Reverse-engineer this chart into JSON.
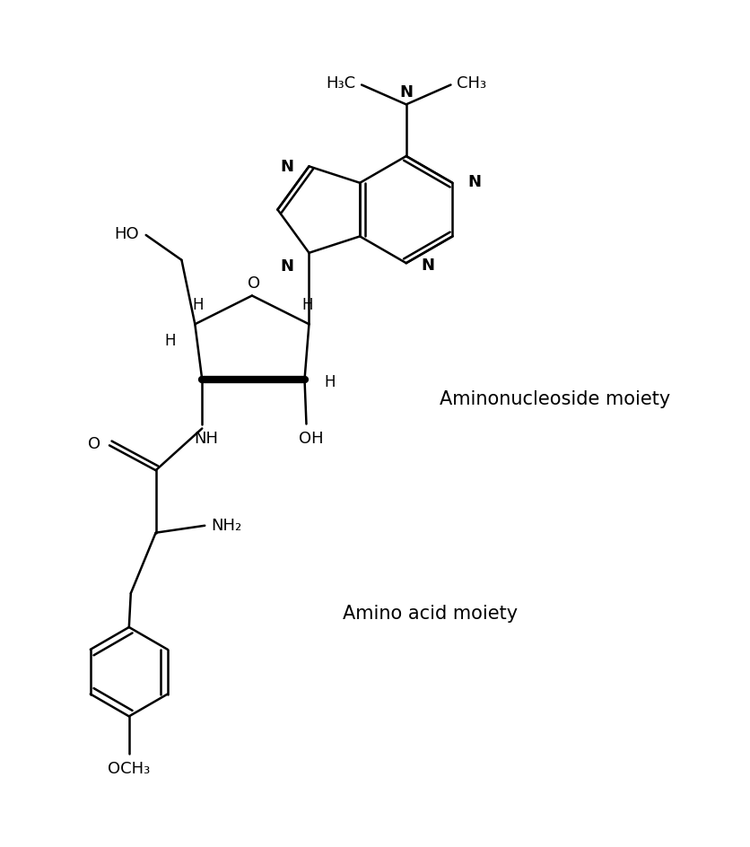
{
  "background": "#ffffff",
  "lw": 1.8,
  "blw": 6.0,
  "fs": 13,
  "label_fs": 15,
  "note1": "Aminonucleoside moiety",
  "note2": "Amino acid moiety",
  "h3c": "H₃C",
  "ch3": "CH₃",
  "och3": "OCH₃",
  "nh2": "NH₂"
}
